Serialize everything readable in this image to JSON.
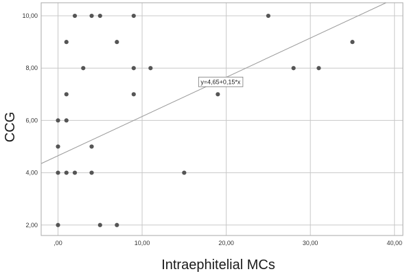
{
  "chart_data": {
    "type": "scatter",
    "xlabel": "Intraephitelial MCs",
    "ylabel": "CCG",
    "xlim": [
      -2,
      41
    ],
    "ylim": [
      1.6,
      10.5
    ],
    "x_ticks": [
      0,
      10,
      20,
      30,
      40
    ],
    "x_tick_labels": [
      ",00",
      "10,00",
      "20,00",
      "30,00",
      "40,00"
    ],
    "y_ticks": [
      2,
      4,
      6,
      8,
      10
    ],
    "y_tick_labels": [
      "2,00",
      "4,00",
      "6,00",
      "8,00",
      "10,00"
    ],
    "grid": true,
    "points": [
      {
        "x": 2,
        "y": 10
      },
      {
        "x": 4,
        "y": 10
      },
      {
        "x": 5,
        "y": 10
      },
      {
        "x": 9,
        "y": 10
      },
      {
        "x": 25,
        "y": 10
      },
      {
        "x": 1,
        "y": 9
      },
      {
        "x": 7,
        "y": 9
      },
      {
        "x": 35,
        "y": 9
      },
      {
        "x": 3,
        "y": 8
      },
      {
        "x": 9,
        "y": 8
      },
      {
        "x": 11,
        "y": 8
      },
      {
        "x": 28,
        "y": 8
      },
      {
        "x": 31,
        "y": 8
      },
      {
        "x": 1,
        "y": 7
      },
      {
        "x": 9,
        "y": 7
      },
      {
        "x": 19,
        "y": 7
      },
      {
        "x": 0,
        "y": 6
      },
      {
        "x": 1,
        "y": 6
      },
      {
        "x": 0,
        "y": 5
      },
      {
        "x": 4,
        "y": 5
      },
      {
        "x": 0,
        "y": 4
      },
      {
        "x": 1,
        "y": 4
      },
      {
        "x": 2,
        "y": 4
      },
      {
        "x": 4,
        "y": 4
      },
      {
        "x": 15,
        "y": 4
      },
      {
        "x": 0,
        "y": 2
      },
      {
        "x": 5,
        "y": 2
      },
      {
        "x": 7,
        "y": 2
      }
    ],
    "fit_line": {
      "intercept": 4.65,
      "slope": 0.15,
      "label": "y=4,65+0,15*x"
    },
    "colors": {
      "points": "#555555",
      "fit_line": "#9a9a9a",
      "grid": "#c8c8c8",
      "frame": "#aaaaaa"
    }
  }
}
